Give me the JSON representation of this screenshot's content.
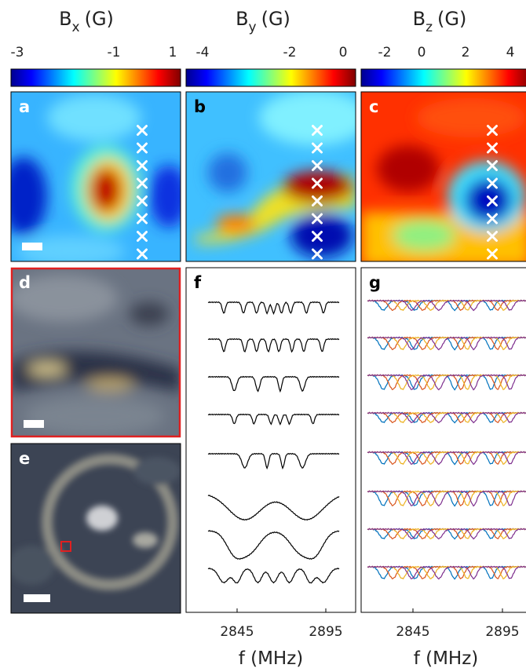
{
  "columns": [
    {
      "title": {
        "symbol": "B",
        "subscript": "x",
        "unit": "(G)"
      },
      "colorbar_ticks": [
        -3,
        -1,
        1
      ]
    },
    {
      "title": {
        "symbol": "B",
        "subscript": "y",
        "unit": "(G)"
      },
      "colorbar_ticks": [
        -4,
        -2,
        0
      ]
    },
    {
      "title": {
        "symbol": "B",
        "subscript": "z",
        "unit": "(G)"
      },
      "colorbar_ticks": [
        -2,
        0,
        2,
        4
      ]
    }
  ],
  "panel_labels": [
    "a",
    "b",
    "c",
    "d",
    "e",
    "f",
    "g"
  ],
  "spectra_axes": [
    {
      "xticks": [
        2845,
        2895
      ],
      "xlabel": "f (MHz)"
    },
    {
      "xticks": [
        2845,
        2895
      ],
      "xlabel": "f (MHz)"
    }
  ]
}
